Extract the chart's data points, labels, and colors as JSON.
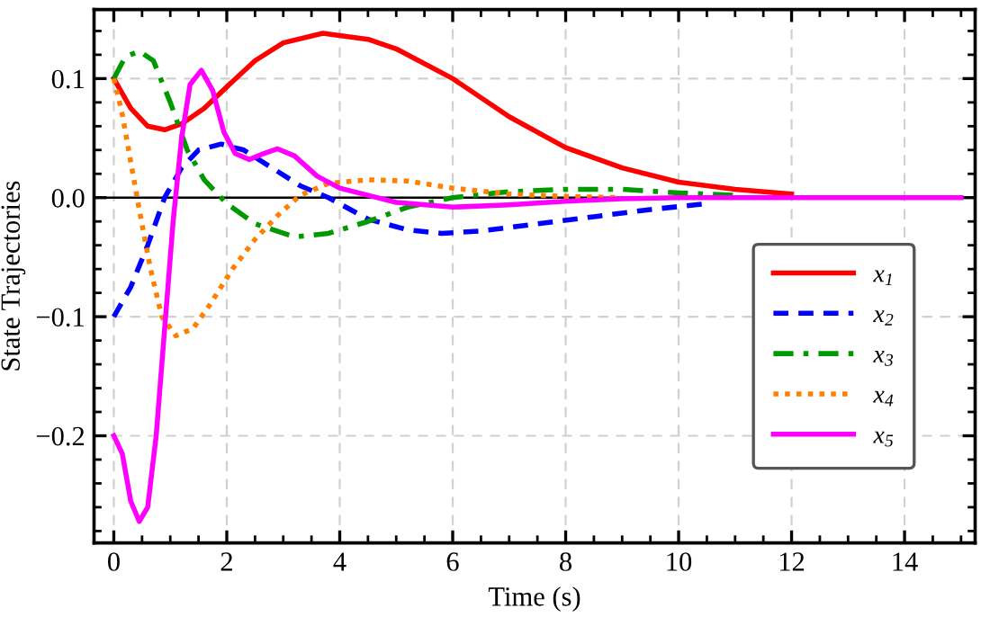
{
  "chart_data": {
    "type": "line",
    "xlabel": "Time (s)",
    "ylabel": "State Trajectories",
    "xlim": [
      -0.35,
      15.25
    ],
    "ylim": [
      -0.29,
      0.158
    ],
    "xticks": [
      0,
      2,
      4,
      6,
      8,
      10,
      12,
      14
    ],
    "yticks": [
      {
        "value": -0.2,
        "label": "−0.2"
      },
      {
        "value": -0.1,
        "label": "−0.1"
      },
      {
        "value": 0.0,
        "label": "0.0"
      },
      {
        "value": 0.1,
        "label": "0.1"
      }
    ],
    "grid": true,
    "legend": "right",
    "marker": "none",
    "ref_lines": [
      {
        "axis": "y",
        "value": 0,
        "color": "#000000",
        "line_style": "solid"
      }
    ],
    "series": [
      {
        "name": "x$_{1}$",
        "color": "#ff0000",
        "line_style": "solid",
        "x": [
          0,
          0.3,
          0.6,
          0.9,
          1.2,
          1.6,
          2,
          2.5,
          3,
          3.7,
          4.5,
          5,
          6,
          7,
          8,
          9,
          10,
          11,
          12
        ],
        "values": [
          0.1,
          0.075,
          0.06,
          0.057,
          0.062,
          0.075,
          0.093,
          0.115,
          0.13,
          0.138,
          0.133,
          0.125,
          0.1,
          0.068,
          0.042,
          0.025,
          0.013,
          0.007,
          0.003
        ]
      },
      {
        "name": "x$_{2}$",
        "color": "#0000ff",
        "line_style": "dashed",
        "x": [
          0,
          0.3,
          0.6,
          0.9,
          1.2,
          1.5,
          1.9,
          2.3,
          2.8,
          3.3,
          3.8,
          4.5,
          5.2,
          5.8,
          6.5,
          7.5,
          8.5,
          9.5,
          10.5
        ],
        "values": [
          -0.1,
          -0.075,
          -0.04,
          0,
          0.025,
          0.04,
          0.045,
          0.04,
          0.025,
          0.01,
          0,
          -0.018,
          -0.027,
          -0.03,
          -0.028,
          -0.022,
          -0.016,
          -0.01,
          -0.005
        ]
      },
      {
        "name": "x$_{3}$",
        "color": "#009900",
        "line_style": "dashdot",
        "x": [
          0,
          0.2,
          0.45,
          0.7,
          1,
          1.3,
          1.6,
          2,
          2.5,
          3.2,
          3.8,
          4.5,
          5.2,
          6,
          7,
          8,
          9,
          10,
          11
        ],
        "values": [
          0.1,
          0.118,
          0.123,
          0.115,
          0.08,
          0.04,
          0.015,
          -0.005,
          -0.022,
          -0.033,
          -0.03,
          -0.02,
          -0.008,
          0,
          0.005,
          0.007,
          0.007,
          0.004,
          0.002
        ]
      },
      {
        "name": "x$_{4}$",
        "color": "#ff8000",
        "line_style": "dotted",
        "x": [
          0,
          0.15,
          0.3,
          0.45,
          0.65,
          0.85,
          1.1,
          1.4,
          1.7,
          2.1,
          2.5,
          2.9,
          3.3,
          3.8,
          4.5,
          5.2,
          6,
          7,
          8,
          9
        ],
        "values": [
          0.1,
          0.07,
          0.03,
          -0.01,
          -0.06,
          -0.1,
          -0.116,
          -0.11,
          -0.09,
          -0.06,
          -0.035,
          -0.015,
          0.002,
          0.012,
          0.015,
          0.014,
          0.008,
          0.003,
          0.001,
          0
        ]
      },
      {
        "name": "x$_{5}$",
        "color": "#ff00ff",
        "line_style": "solid",
        "x": [
          0,
          0.15,
          0.3,
          0.45,
          0.6,
          0.75,
          0.9,
          1.05,
          1.2,
          1.35,
          1.55,
          1.75,
          1.95,
          2.15,
          2.4,
          2.65,
          2.9,
          3.2,
          3.6,
          4,
          4.5,
          5,
          6,
          7,
          8,
          9,
          10,
          15
        ],
        "values": [
          -0.2,
          -0.215,
          -0.255,
          -0.272,
          -0.26,
          -0.2,
          -0.11,
          -0.02,
          0.05,
          0.095,
          0.107,
          0.09,
          0.055,
          0.037,
          0.032,
          0.037,
          0.041,
          0.035,
          0.018,
          0.008,
          0.002,
          -0.004,
          -0.008,
          -0.006,
          -0.003,
          -0.001,
          0,
          0
        ]
      }
    ]
  }
}
